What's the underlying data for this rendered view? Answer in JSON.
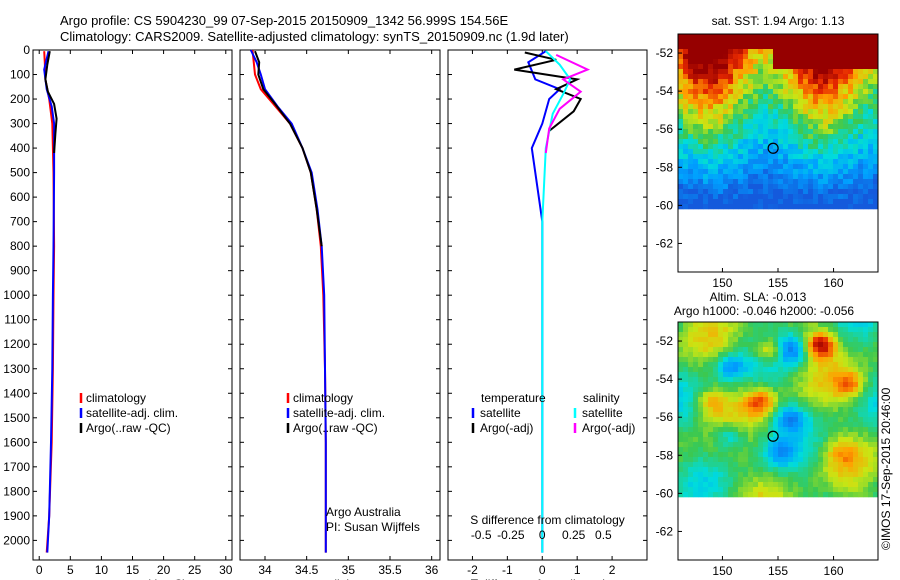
{
  "header": {
    "title_line1": "Argo profile: CS 5904230_99 07-Sep-2015 20150909_1342 56.999S 154.56E",
    "title_line2": "Climatology: CARS2009. Satellite-adjusted climatology: synTS_20150909.nc (1.9d later)"
  },
  "chart_data": [
    {
      "type": "line",
      "panel": "temperature",
      "xlabel": "temperature (deg C)",
      "ylabel": "",
      "xlim": [
        -1,
        31
      ],
      "ylim": [
        2080,
        0
      ],
      "y_inverted": true,
      "xticks": [
        0,
        5,
        10,
        15,
        20,
        25,
        30
      ],
      "yticks": [
        0,
        100,
        200,
        300,
        400,
        500,
        600,
        700,
        800,
        900,
        1000,
        1100,
        1200,
        1300,
        1400,
        1500,
        1600,
        1700,
        1800,
        1900,
        2000
      ],
      "legend": [
        "climatology",
        "satellite-adj. clim.",
        "Argo(..raw -QC)"
      ],
      "legend_position": "lower-center",
      "series": [
        {
          "name": "climatology",
          "color": "#ff0000",
          "points": [
            [
              0.8,
              5
            ],
            [
              0.9,
              50
            ],
            [
              1.0,
              120
            ],
            [
              1.6,
              200
            ],
            [
              2.1,
              300
            ],
            [
              2.3,
              500
            ],
            [
              2.4,
              800
            ],
            [
              2.3,
              1000
            ],
            [
              2.2,
              1300
            ],
            [
              2.0,
              1600
            ],
            [
              1.6,
              1900
            ],
            [
              1.2,
              2050
            ]
          ]
        },
        {
          "name": "satellite-adj. clim.",
          "color": "#0000ff",
          "points": [
            [
              1.5,
              5
            ],
            [
              0.8,
              80
            ],
            [
              1.2,
              160
            ],
            [
              2.0,
              230
            ],
            [
              2.4,
              300
            ],
            [
              2.4,
              500
            ],
            [
              2.3,
              800
            ],
            [
              2.2,
              1000
            ],
            [
              2.1,
              1300
            ],
            [
              1.9,
              1600
            ],
            [
              1.6,
              1900
            ],
            [
              1.3,
              2050
            ]
          ]
        },
        {
          "name": "Argo(..raw -QC)",
          "color": "#000000",
          "points": [
            [
              1.7,
              5
            ],
            [
              1.3,
              60
            ],
            [
              1.0,
              120
            ],
            [
              1.4,
              170
            ],
            [
              2.4,
              220
            ],
            [
              2.8,
              280
            ],
            [
              2.6,
              340
            ],
            [
              2.4,
              420
            ]
          ]
        }
      ]
    },
    {
      "type": "line",
      "panel": "salinity",
      "xlabel": "salinity",
      "ylabel": "",
      "xlim": [
        33.7,
        36.1
      ],
      "ylim": [
        2080,
        0
      ],
      "y_inverted": true,
      "xticks": [
        34,
        34.5,
        35,
        35.5,
        36
      ],
      "legend": [
        "climatology",
        "satellite-adj. clim.",
        "Argo(..raw -QC)"
      ],
      "legend_position": "lower-center",
      "annotations": [
        "Argo Australia",
        "PI: Susan Wijffels"
      ],
      "series": [
        {
          "name": "climatology",
          "color": "#ff0000",
          "points": [
            [
              33.85,
              0
            ],
            [
              33.88,
              100
            ],
            [
              33.95,
              160
            ],
            [
              34.1,
              220
            ],
            [
              34.3,
              300
            ],
            [
              34.45,
              400
            ],
            [
              34.55,
              500
            ],
            [
              34.62,
              650
            ],
            [
              34.67,
              800
            ],
            [
              34.7,
              1000
            ],
            [
              34.72,
              1300
            ],
            [
              34.73,
              1600
            ],
            [
              34.73,
              2050
            ]
          ]
        },
        {
          "name": "satellite-adj. clim.",
          "color": "#0000ff",
          "points": [
            [
              33.83,
              0
            ],
            [
              33.9,
              50
            ],
            [
              33.95,
              100
            ],
            [
              34.0,
              160
            ],
            [
              34.15,
              230
            ],
            [
              34.32,
              300
            ],
            [
              34.45,
              400
            ],
            [
              34.56,
              500
            ],
            [
              34.63,
              650
            ],
            [
              34.68,
              800
            ],
            [
              34.71,
              1000
            ],
            [
              34.72,
              1300
            ],
            [
              34.73,
              1600
            ],
            [
              34.73,
              2050
            ]
          ]
        },
        {
          "name": "Argo(..raw -QC)",
          "color": "#000000",
          "points": [
            [
              33.88,
              5
            ],
            [
              33.93,
              50
            ],
            [
              33.92,
              100
            ],
            [
              33.98,
              160
            ],
            [
              34.12,
              220
            ],
            [
              34.3,
              300
            ],
            [
              34.45,
              400
            ],
            [
              34.55,
              500
            ],
            [
              34.62,
              650
            ],
            [
              34.68,
              800
            ]
          ]
        }
      ]
    },
    {
      "type": "line",
      "panel": "difference",
      "xlabel": "T difference from climatology",
      "xlabel_top": "S difference from climatology",
      "xlim": [
        -2.7,
        3.0
      ],
      "ylim": [
        2080,
        0
      ],
      "y_inverted": true,
      "xticks": [
        -2,
        -1,
        0,
        1,
        2
      ],
      "top_ticks": [
        [
          "-0.5",
          -1.75
        ],
        [
          "-0.25",
          -0.9
        ],
        [
          "0",
          0
        ],
        [
          "0.25",
          0.9
        ],
        [
          "0.5",
          1.75
        ]
      ],
      "legend_temperature_title": "temperature",
      "legend_salinity_title": "salinity",
      "legend": [
        "satellite",
        "Argo(-adj)",
        "satellite",
        "Argo(-adj)"
      ],
      "series": [
        {
          "name": "temperature satellite",
          "color": "#0000ff",
          "points": [
            [
              0.1,
              5
            ],
            [
              -0.4,
              50
            ],
            [
              -0.2,
              120
            ],
            [
              0.5,
              160
            ],
            [
              0.2,
              200
            ],
            [
              0.0,
              300
            ],
            [
              -0.3,
              400
            ],
            [
              0.0,
              700
            ],
            [
              0.0,
              1500
            ],
            [
              0.0,
              2050
            ]
          ]
        },
        {
          "name": "temperature Argo(-adj)",
          "color": "#000000",
          "points": [
            [
              -0.5,
              10
            ],
            [
              0.4,
              40
            ],
            [
              -0.8,
              80
            ],
            [
              1.0,
              120
            ],
            [
              0.4,
              160
            ],
            [
              1.1,
              200
            ],
            [
              0.9,
              250
            ],
            [
              0.2,
              330
            ]
          ]
        },
        {
          "name": "salinity satellite",
          "color": "#00ffff",
          "points": [
            [
              0.1,
              5
            ],
            [
              0.5,
              60
            ],
            [
              0.8,
              120
            ],
            [
              0.6,
              180
            ],
            [
              0.3,
              260
            ],
            [
              0.1,
              400
            ],
            [
              0.0,
              700
            ],
            [
              0.0,
              1500
            ],
            [
              0.0,
              2050
            ]
          ]
        },
        {
          "name": "salinity Argo(-adj)",
          "color": "#ff00ff",
          "points": [
            [
              0.4,
              20
            ],
            [
              1.3,
              80
            ],
            [
              0.6,
              120
            ],
            [
              1.1,
              170
            ],
            [
              0.5,
              240
            ],
            [
              0.2,
              320
            ],
            [
              0.1,
              420
            ]
          ]
        }
      ]
    },
    {
      "type": "heatmap",
      "panel": "sst-map",
      "title": "sat. SST: 1.94  Argo: 1.13",
      "xlim": [
        146,
        164
      ],
      "ylim": [
        -63.5,
        -51
      ],
      "xticks": [
        150,
        155,
        160
      ],
      "yticks": [
        -52,
        -54,
        -56,
        -58,
        -60,
        -62
      ],
      "marker": {
        "lon": 154.56,
        "lat": -57.0
      },
      "data_lat_min": -60
    },
    {
      "type": "heatmap",
      "panel": "sla-map",
      "title": "Altim. SLA: -0.013",
      "subtitle": "Argo h1000: -0.046  h2000: -0.056",
      "xlim": [
        146,
        164
      ],
      "ylim": [
        -63.5,
        -51
      ],
      "xticks": [
        150,
        155,
        160
      ],
      "yticks": [
        -52,
        -54,
        -56,
        -58,
        -60,
        -62
      ],
      "marker": {
        "lon": 154.56,
        "lat": -57.0
      },
      "data_lat_min": -60
    }
  ],
  "footer": {
    "credit": "©IMOS 17-Sep-2015 20:46:00"
  }
}
